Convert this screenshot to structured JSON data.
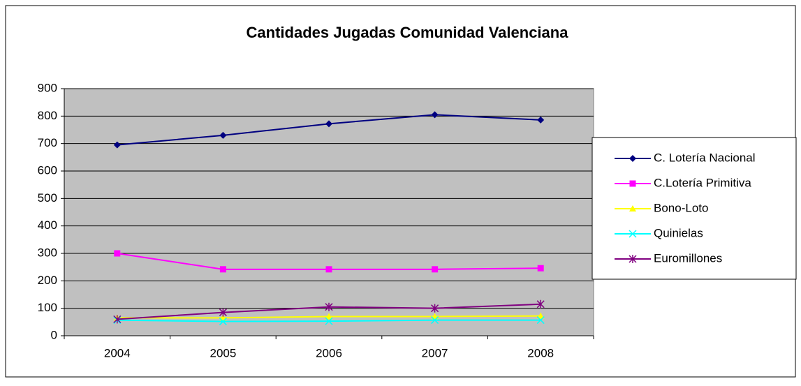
{
  "chart_data": {
    "type": "line",
    "title": "Cantidades Jugadas Comunidad Valenciana",
    "categories": [
      "2004",
      "2005",
      "2006",
      "2007",
      "2008"
    ],
    "series": [
      {
        "name": "C. Lotería Nacional",
        "color": "#000080",
        "marker": "diamond",
        "values": [
          695,
          730,
          772,
          805,
          786
        ]
      },
      {
        "name": "C.Lotería Primitiva",
        "color": "#ff00ff",
        "marker": "square",
        "values": [
          300,
          242,
          242,
          242,
          246
        ]
      },
      {
        "name": "Bono-Loto",
        "color": "#ffff00",
        "marker": "triangle",
        "values": [
          65,
          65,
          70,
          70,
          72
        ]
      },
      {
        "name": "Quinielas",
        "color": "#00ffff",
        "marker": "x",
        "values": [
          57,
          52,
          53,
          57,
          57
        ]
      },
      {
        "name": "Euromillones",
        "color": "#800080",
        "marker": "star",
        "values": [
          60,
          85,
          105,
          100,
          115
        ]
      }
    ],
    "ylim": [
      0,
      900
    ],
    "yticks": [
      0,
      100,
      200,
      300,
      400,
      500,
      600,
      700,
      800,
      900
    ],
    "grid": true,
    "legend": "right",
    "plot_background": "#c0c0c0"
  }
}
